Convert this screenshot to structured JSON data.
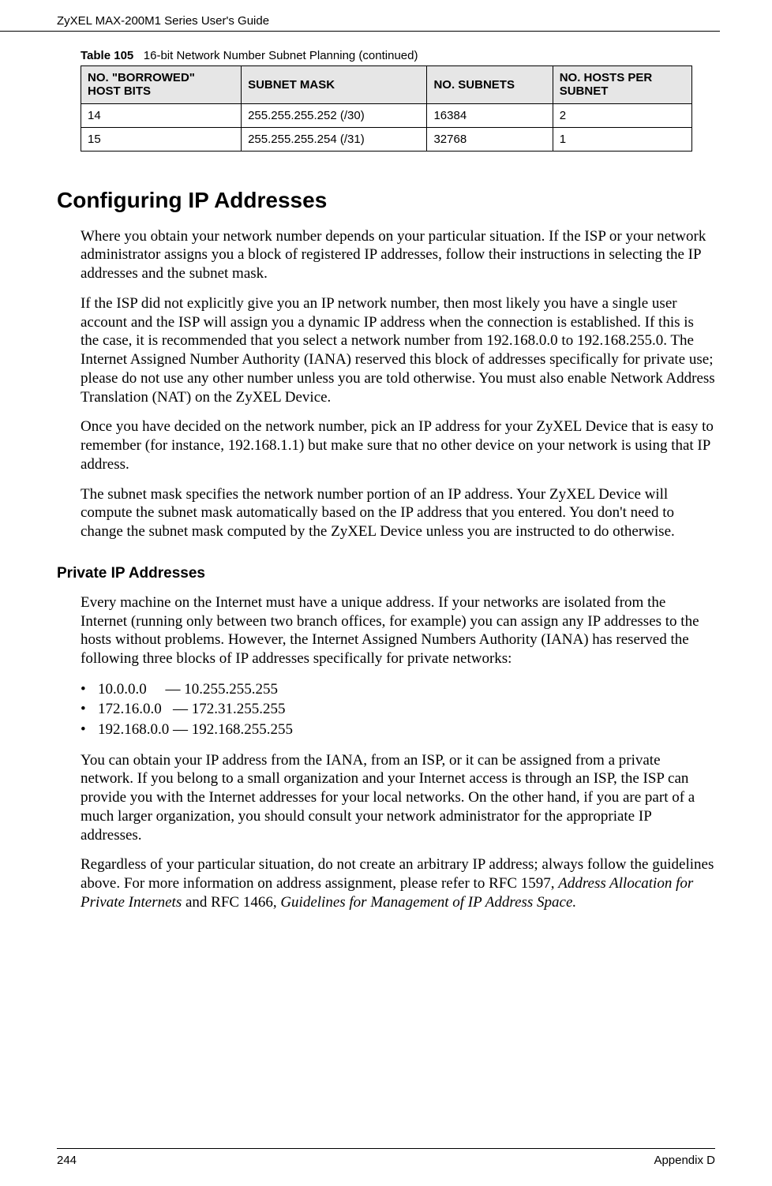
{
  "running_header": "ZyXEL MAX-200M1 Series User's Guide",
  "table": {
    "caption_label": "Table 105",
    "caption_text": "16-bit Network Number Subnet Planning (continued)",
    "headers": {
      "c1a": "NO. \"BORROWED\"",
      "c1b": "HOST BITS",
      "c2": "SUBNET MASK",
      "c3": "NO. SUBNETS",
      "c4a": "NO. HOSTS PER",
      "c4b": "SUBNET"
    },
    "rows": [
      {
        "c1": "14",
        "c2": "255.255.255.252 (/30)",
        "c3": "16384",
        "c4": "2"
      },
      {
        "c1": "15",
        "c2": "255.255.255.254 (/31)",
        "c3": "32768",
        "c4": "1"
      }
    ]
  },
  "h1": "Configuring IP Addresses",
  "p1": "Where you obtain your network number depends on your particular situation. If the ISP or your network administrator assigns you a block of registered IP addresses, follow their instructions in selecting the IP addresses and the subnet mask.",
  "p2": "If the ISP did not explicitly give you an IP network number, then most likely you have a single user account and the ISP will assign you a dynamic IP address when the connection is established. If this is the case, it is recommended that you select a network number from 192.168.0.0 to 192.168.255.0. The Internet Assigned Number Authority (IANA) reserved this block of addresses specifically for private use; please do not use any other number unless you are told otherwise. You must also enable Network Address Translation (NAT) on the ZyXEL Device.",
  "p3": "Once you have decided on the network number, pick an IP address for your ZyXEL Device that is easy to remember (for instance, 192.168.1.1) but make sure that no other device on your network is using that IP address.",
  "p4": "The subnet mask specifies the network number portion of an IP address. Your ZyXEL Device will compute the subnet mask automatically based on the IP address that you entered. You don't need to change the subnet mask computed by the ZyXEL Device unless you are instructed to do otherwise.",
  "h2": "Private IP Addresses",
  "p5": "Every machine on the Internet must have a unique address. If your networks are isolated from the Internet (running only between two branch offices, for example) you can assign any IP addresses to the hosts without problems. However, the Internet Assigned Numbers Authority (IANA) has reserved the following three blocks of IP addresses specifically for private networks:",
  "bullets": {
    "b1": "10.0.0.0     — 10.255.255.255",
    "b2": "172.16.0.0   — 172.31.255.255",
    "b3": "192.168.0.0 — 192.168.255.255"
  },
  "p6": "You can obtain your IP address from the IANA, from an ISP, or it can be assigned from a private network. If you belong to a small organization and your Internet access is through an ISP, the ISP can provide you with the Internet addresses for your local networks. On the other hand, if you are part of a much larger organization, you should consult your network administrator for the appropriate IP addresses.",
  "p7_a": "Regardless of your particular situation, do not create an arbitrary IP address; always follow the guidelines above. For more information on address assignment, please refer to RFC 1597, ",
  "p7_i1": "Address Allocation for Private Internets",
  "p7_b": " and RFC 1466, ",
  "p7_i2": "Guidelines for Management of IP Address Space.",
  "footer": {
    "page": "244",
    "appendix": "Appendix D"
  }
}
